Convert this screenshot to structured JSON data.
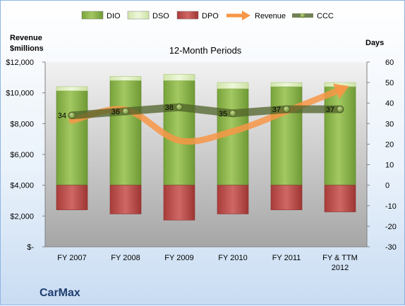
{
  "chart_data": {
    "type": "bar",
    "title": "12-Month Periods",
    "left_axis_label": [
      "Revenue",
      "$millions"
    ],
    "right_axis_label": "Days",
    "left_ticks": [
      "$-",
      "$2,000",
      "$4,000",
      "$6,000",
      "$8,000",
      "$10,000",
      "$12,000"
    ],
    "right_ticks": [
      "-30",
      "-20",
      "-10",
      "0",
      "10",
      "20",
      "30",
      "40",
      "50",
      "60"
    ],
    "left_ylim": [
      0,
      12000
    ],
    "right_ylim": [
      -30,
      60
    ],
    "categories": [
      [
        "FY 2007"
      ],
      [
        "FY 2008"
      ],
      [
        "FY 2009"
      ],
      [
        "FY 2010"
      ],
      [
        "FY 2011"
      ],
      [
        "FY & TTM",
        "2012"
      ]
    ],
    "legend": [
      {
        "name": "DIO",
        "color": "#8fb449",
        "kind": "bar"
      },
      {
        "name": "DSO",
        "color": "#e2f0c8",
        "kind": "bar"
      },
      {
        "name": "DPO",
        "color": "#c0504d",
        "kind": "bar"
      },
      {
        "name": "Revenue",
        "color": "#f79646",
        "kind": "arrow"
      },
      {
        "name": "CCC",
        "color": "#4f6228",
        "kind": "line"
      }
    ],
    "series": [
      {
        "name": "DIO",
        "values": [
          46,
          51,
          51,
          47,
          48,
          48
        ]
      },
      {
        "name": "DSO",
        "values": [
          2,
          2,
          3,
          3,
          2,
          2
        ]
      },
      {
        "name": "DPO",
        "values": [
          -12,
          -14,
          -17,
          -14,
          -12,
          -13
        ]
      },
      {
        "name": "CCC",
        "values": [
          34,
          36,
          38,
          35,
          37,
          37
        ]
      },
      {
        "name": "Revenue",
        "values": [
          8200,
          8900,
          6900,
          7500,
          8800,
          10200
        ]
      }
    ],
    "ccc_labels": [
      "34",
      "36",
      "38",
      "35",
      "37",
      "37"
    ],
    "grid": false,
    "legend_position": "top"
  },
  "company": "CarMax"
}
